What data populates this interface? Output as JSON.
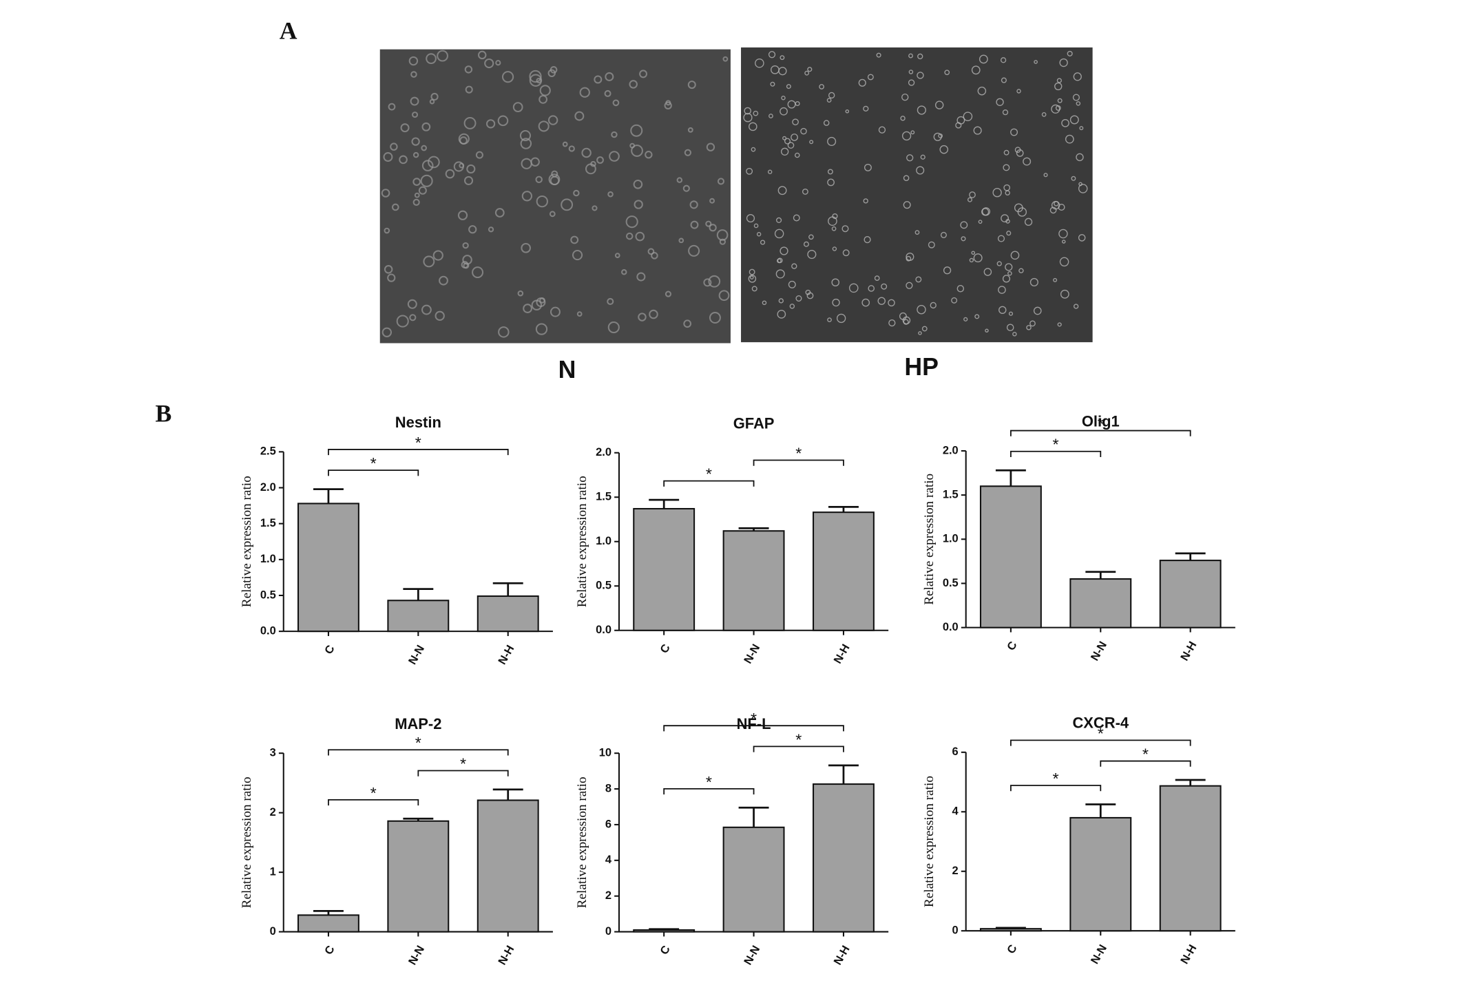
{
  "figure": {
    "panel_a": "A",
    "panel_b": "B",
    "image_labels": [
      "N",
      "HP"
    ]
  },
  "chart_data": [
    {
      "type": "bar",
      "title": "Nestin",
      "ylabel": "Relative expression ratio",
      "categories": [
        "C",
        "N-N",
        "N-H"
      ],
      "values": [
        1.78,
        0.43,
        0.49
      ],
      "errors": [
        0.2,
        0.16,
        0.18
      ],
      "color": "#a0a0a0",
      "ylim": [
        0,
        2.5
      ],
      "yticks": [
        {
          "value": 0,
          "label": "0.0"
        },
        0.5,
        {
          "value": 1,
          "label": "1.0"
        },
        1.5,
        {
          "value": 2,
          "label": "2.0"
        },
        2.5
      ],
      "brackets": [
        {
          "from": "C",
          "to": "N-N",
          "label": "*"
        },
        {
          "from": "C",
          "to": "N-H",
          "label": "*"
        }
      ]
    },
    {
      "type": "bar",
      "title": "GFAP",
      "ylabel": "Relative expression ratio",
      "categories": [
        "C",
        "N-N",
        "N-H"
      ],
      "values": [
        1.37,
        1.12,
        1.33
      ],
      "errors": [
        0.1,
        0.03,
        0.06
      ],
      "color": "#a0a0a0",
      "ylim": [
        0,
        2
      ],
      "yticks": [
        {
          "value": 0,
          "label": "0.0"
        },
        0.5,
        {
          "value": 1,
          "label": "1.0"
        },
        1.5,
        {
          "value": 2,
          "label": "2.0"
        }
      ],
      "brackets": [
        {
          "from": "C",
          "to": "N-N",
          "label": "*"
        },
        {
          "from": "N-N",
          "to": "N-H",
          "label": "*"
        }
      ]
    },
    {
      "type": "bar",
      "title": "Olig1",
      "ylabel": "Relative expression ratio",
      "categories": [
        "C",
        "N-N",
        "N-H"
      ],
      "values": [
        1.6,
        0.55,
        0.76
      ],
      "errors": [
        0.18,
        0.08,
        0.08
      ],
      "color": "#a0a0a0",
      "ylim": [
        0,
        2
      ],
      "yticks": [
        {
          "value": 0,
          "label": "0.0"
        },
        0.5,
        {
          "value": 1,
          "label": "1.0"
        },
        1.5,
        {
          "value": 2,
          "label": "2.0"
        }
      ],
      "brackets": [
        {
          "from": "C",
          "to": "N-N",
          "label": "*"
        },
        {
          "from": "C",
          "to": "N-H",
          "label": "*"
        }
      ]
    },
    {
      "type": "bar",
      "title": "MAP-2",
      "ylabel": "Relative expression ratio",
      "categories": [
        "C",
        "N-N",
        "N-H"
      ],
      "values": [
        0.28,
        1.86,
        2.21
      ],
      "errors": [
        0.07,
        0.04,
        0.18
      ],
      "color": "#a0a0a0",
      "ylim": [
        0,
        3
      ],
      "yticks": [
        0,
        1,
        2,
        3
      ],
      "brackets": [
        {
          "from": "C",
          "to": "N-N",
          "label": "*"
        },
        {
          "from": "N-N",
          "to": "N-H",
          "label": "*"
        },
        {
          "from": "C",
          "to": "N-H",
          "label": "*"
        }
      ]
    },
    {
      "type": "bar",
      "title": "NF-L",
      "ylabel": "Relative expression ratio",
      "categories": [
        "C",
        "N-N",
        "N-H"
      ],
      "values": [
        0.1,
        5.85,
        8.27
      ],
      "errors": [
        0.05,
        1.1,
        1.05
      ],
      "color": "#a0a0a0",
      "ylim": [
        0,
        10
      ],
      "yticks": [
        0,
        2,
        4,
        6,
        8,
        10
      ],
      "brackets": [
        {
          "from": "C",
          "to": "N-N",
          "label": "*"
        },
        {
          "from": "N-N",
          "to": "N-H",
          "label": "*"
        },
        {
          "from": "C",
          "to": "N-H",
          "label": "*"
        }
      ]
    },
    {
      "type": "bar",
      "title": "CXCR-4",
      "ylabel": "Relative expression ratio",
      "categories": [
        "C",
        "N-N",
        "N-H"
      ],
      "values": [
        0.07,
        3.8,
        4.87
      ],
      "errors": [
        0.03,
        0.45,
        0.2
      ],
      "color": "#a0a0a0",
      "ylim": [
        0,
        6
      ],
      "yticks": [
        0,
        2,
        4,
        6
      ],
      "brackets": [
        {
          "from": "C",
          "to": "N-N",
          "label": "*"
        },
        {
          "from": "N-N",
          "to": "N-H",
          "label": "*"
        },
        {
          "from": "C",
          "to": "N-H",
          "label": "*"
        }
      ]
    }
  ]
}
